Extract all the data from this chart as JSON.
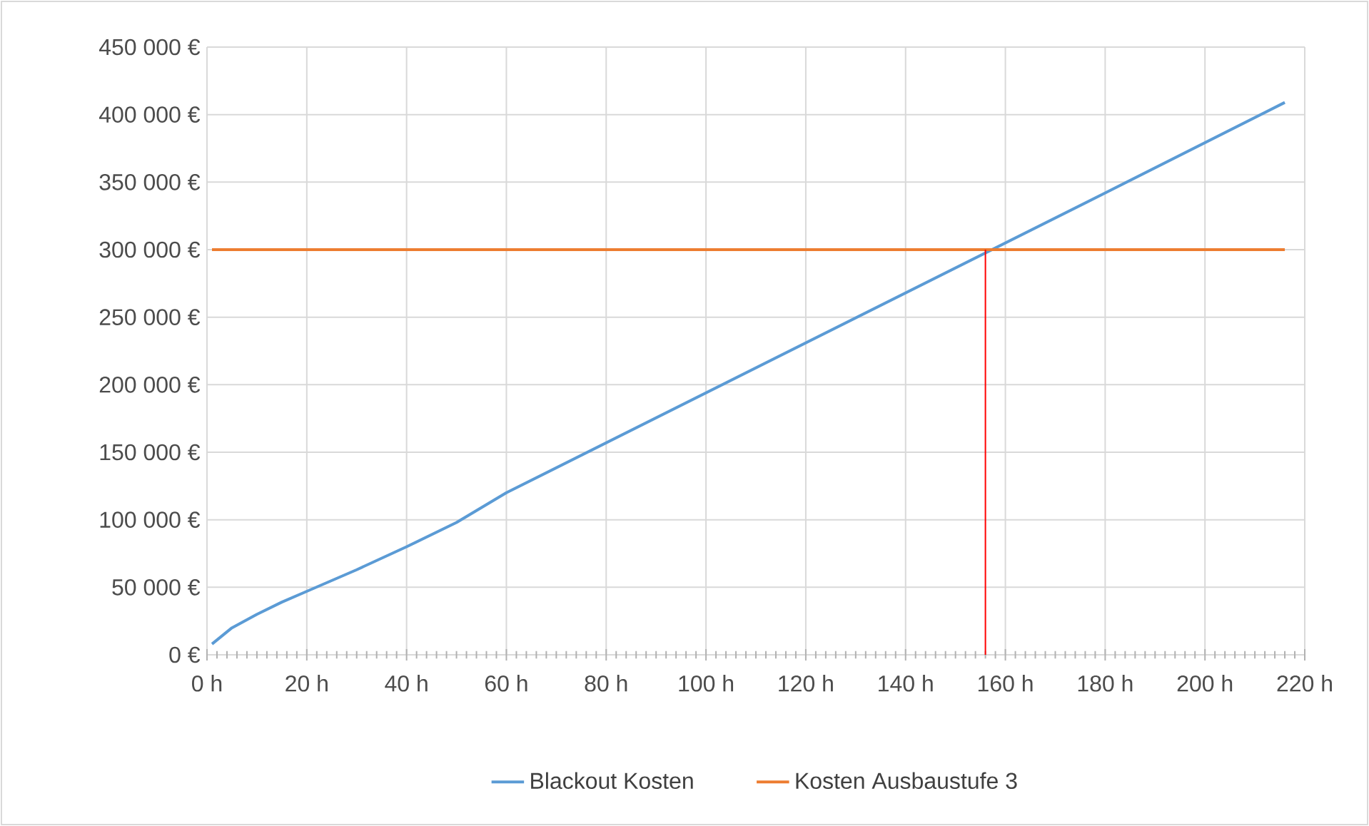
{
  "chart_data": {
    "type": "line",
    "x": [
      1,
      5,
      10,
      15,
      20,
      30,
      40,
      50,
      60,
      100,
      140,
      180,
      216
    ],
    "series": [
      {
        "name": "Blackout Kosten",
        "color": "#5b9bd5",
        "values": [
          8000,
          20000,
          30000,
          39000,
          47000,
          63000,
          80000,
          98000,
          120000,
          194000,
          268000,
          342000,
          409000
        ]
      },
      {
        "name": "Kosten Ausbaustufe 3",
        "color": "#ed7d31",
        "x": [
          1,
          216
        ],
        "values": [
          300000,
          300000
        ]
      },
      {
        "color": "#ff0000",
        "x": [
          156,
          156
        ],
        "values": [
          0,
          300000
        ]
      }
    ],
    "xlim": [
      0,
      220
    ],
    "xticks": [
      {
        "value": 0,
        "label": "0 h"
      },
      {
        "value": 20,
        "label": "20 h"
      },
      {
        "value": 40,
        "label": "40 h"
      },
      {
        "value": 60,
        "label": "60 h"
      },
      {
        "value": 80,
        "label": "80 h"
      },
      {
        "value": 100,
        "label": "100 h"
      },
      {
        "value": 120,
        "label": "120 h"
      },
      {
        "value": 140,
        "label": "140 h"
      },
      {
        "value": 160,
        "label": "160 h"
      },
      {
        "value": 180,
        "label": "180 h"
      },
      {
        "value": 200,
        "label": "200 h"
      },
      {
        "value": 220,
        "label": "220 h"
      }
    ],
    "ylim": [
      0,
      450000
    ],
    "yticks": [
      {
        "value": 0,
        "label": "0 €"
      },
      {
        "value": 50000,
        "label": "50 000 €"
      },
      {
        "value": 100000,
        "label": "100 000 €"
      },
      {
        "value": 150000,
        "label": "150 000 €"
      },
      {
        "value": 200000,
        "label": "200 000 €"
      },
      {
        "value": 250000,
        "label": "250 000 €"
      },
      {
        "value": 300000,
        "label": "300 000 €"
      },
      {
        "value": 350000,
        "label": "350 000 €"
      },
      {
        "value": 400000,
        "label": "400 000 €"
      },
      {
        "value": 450000,
        "label": "450 000 €"
      }
    ],
    "grid": true,
    "legend": "bottom",
    "marker": "none",
    "line_style": "solid"
  }
}
